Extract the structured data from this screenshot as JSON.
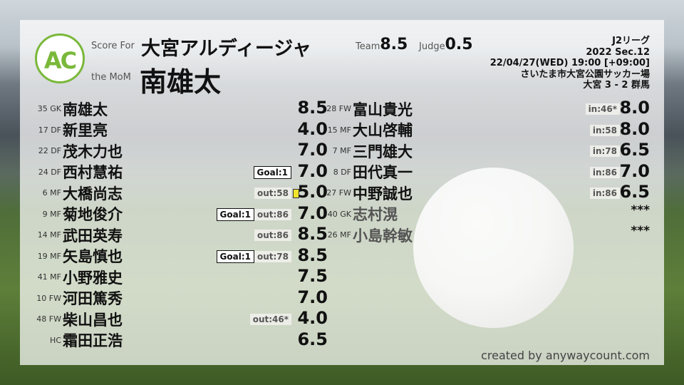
{
  "header": {
    "logo_text": "AC",
    "logo_ring_top": "ANYWAY",
    "logo_ring_bottom": "COUNT",
    "score_for_label": "Score For",
    "the_mom_label": "the MoM",
    "team": "大宮アルディージャ",
    "mom": "南雄太",
    "team_label": "Team",
    "team_score": "8.5",
    "judge_label": "Judge",
    "judge_score": "0.5"
  },
  "match": {
    "league": "J2リーグ",
    "section": "2022 Sec.12",
    "datetime": "22/04/27(WED) 19:00 [+09:00]",
    "venue": "さいたま市大宮公園サッカー場",
    "result": "大宮 3 - 2 群馬"
  },
  "colors": {
    "logo": "#7ab83a",
    "yellow_card": "#f0e52a"
  },
  "left_players": [
    {
      "pos": "35 GK",
      "name": "南雄太",
      "rating": "8.5"
    },
    {
      "pos": "17 DF",
      "name": "新里亮",
      "rating": "4.0"
    },
    {
      "pos": "22 DF",
      "name": "茂木力也",
      "rating": "7.0"
    },
    {
      "pos": "24 DF",
      "name": "西村慧祐",
      "rating": "7.0",
      "goal": "Goal:1"
    },
    {
      "pos": "6 MF",
      "name": "大橋尚志",
      "rating": "5.0",
      "sub": "out:58",
      "yellow": true
    },
    {
      "pos": "9 MF",
      "name": "菊地俊介",
      "rating": "7.0",
      "goal": "Goal:1",
      "sub": "out:86"
    },
    {
      "pos": "14 MF",
      "name": "武田英寿",
      "rating": "8.5",
      "sub": "out:86"
    },
    {
      "pos": "19 MF",
      "name": "矢島慎也",
      "rating": "8.5",
      "goal": "Goal:1",
      "sub": "out:78"
    },
    {
      "pos": "41 MF",
      "name": "小野雅史",
      "rating": "7.5"
    },
    {
      "pos": "10 FW",
      "name": "河田篤秀",
      "rating": "7.0"
    },
    {
      "pos": "48 FW",
      "name": "柴山昌也",
      "rating": "4.0",
      "sub": "out:46*"
    },
    {
      "pos": "HC",
      "name": "霜田正浩",
      "rating": "6.5"
    }
  ],
  "right_players": [
    {
      "pos": "28 FW",
      "name": "富山貴光",
      "rating": "8.0",
      "sub": "in:46*"
    },
    {
      "pos": "15 MF",
      "name": "大山啓輔",
      "rating": "8.0",
      "sub": "in:58"
    },
    {
      "pos": "7 MF",
      "name": "三門雄大",
      "rating": "6.5",
      "sub": "in:78"
    },
    {
      "pos": "8 DF",
      "name": "田代真一",
      "rating": "7.0",
      "sub": "in:86"
    },
    {
      "pos": "27 FW",
      "name": "中野誠也",
      "rating": "6.5",
      "sub": "in:86"
    },
    {
      "pos": "40 GK",
      "name": "志村滉",
      "rating": "***",
      "unused": true
    },
    {
      "pos": "26 MF",
      "name": "小島幹敏",
      "rating": "***",
      "unused": true
    }
  ],
  "footer": {
    "credit": "created by anywaycount.com"
  }
}
